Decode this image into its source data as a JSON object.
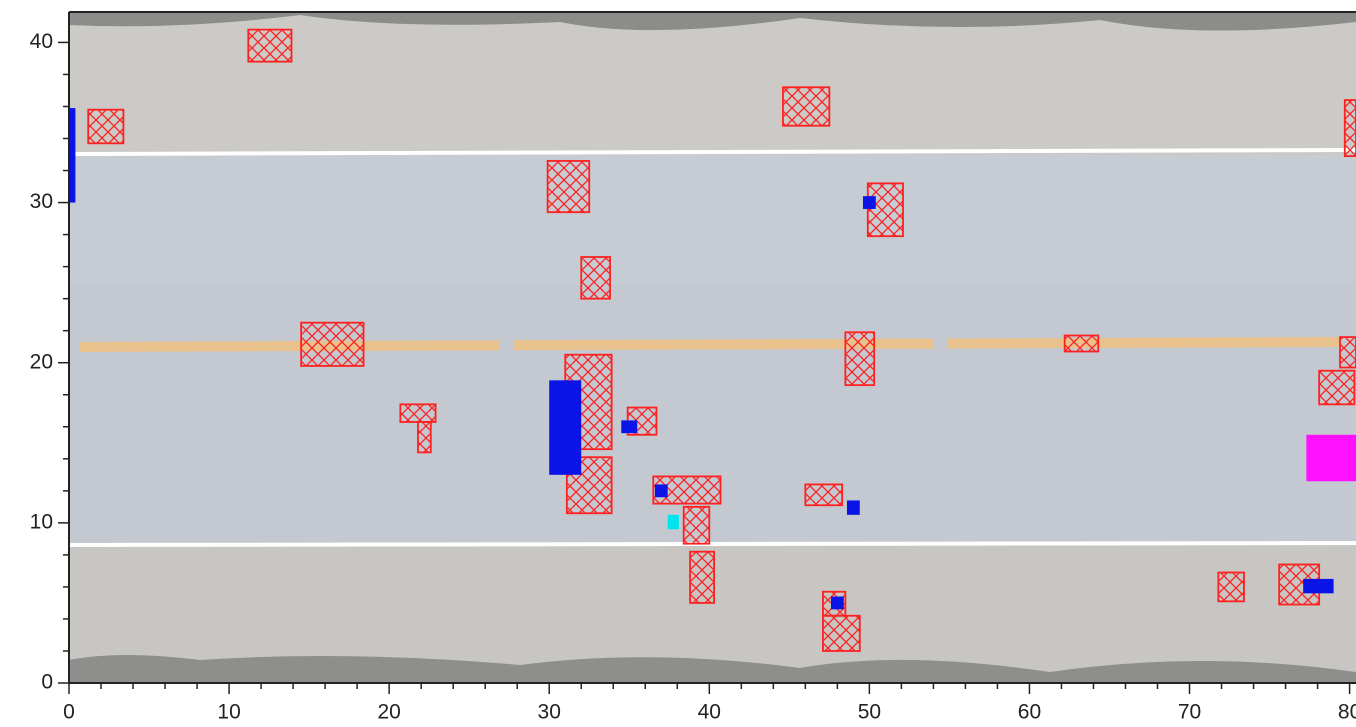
{
  "chart_data": {
    "type": "region",
    "xlim": [
      0,
      80.4
    ],
    "ylim": [
      0,
      41.9
    ],
    "xticks": [
      0,
      10,
      20,
      30,
      40,
      50,
      60,
      70,
      80
    ],
    "yticks": [
      0,
      10,
      20,
      30,
      40
    ],
    "xminorticks": [
      2,
      4,
      6,
      8,
      12,
      14,
      16,
      18,
      22,
      24,
      26,
      28,
      32,
      34,
      36,
      38,
      42,
      44,
      46,
      48,
      52,
      54,
      56,
      58,
      62,
      64,
      66,
      68,
      72,
      74,
      76,
      78
    ],
    "yminorticks": [
      2,
      4,
      6,
      8,
      12,
      14,
      16,
      18,
      22,
      24,
      26,
      28,
      32,
      34,
      36,
      38
    ],
    "series": [
      {
        "color": "#ff2020",
        "hatch": true,
        "regions": [
          {
            "x0": 11.2,
            "x1": 13.9,
            "y0": 38.8,
            "y1": 40.8
          },
          {
            "x0": 1.2,
            "x1": 3.4,
            "y0": 33.7,
            "y1": 35.8
          },
          {
            "x0": 44.6,
            "x1": 47.5,
            "y0": 34.8,
            "y1": 37.2
          },
          {
            "x0": 79.7,
            "x1": 80.4,
            "y0": 32.9,
            "y1": 36.4
          },
          {
            "x0": 29.9,
            "x1": 32.5,
            "y0": 29.4,
            "y1": 32.6
          },
          {
            "x0": 49.9,
            "x1": 52.1,
            "y0": 27.9,
            "y1": 31.2
          },
          {
            "x0": 32.0,
            "x1": 33.8,
            "y0": 24.0,
            "y1": 26.6
          },
          {
            "x0": 14.5,
            "x1": 18.4,
            "y0": 19.8,
            "y1": 22.5
          },
          {
            "x0": 48.5,
            "x1": 50.3,
            "y0": 18.6,
            "y1": 21.9
          },
          {
            "x0": 62.2,
            "x1": 64.3,
            "y0": 20.7,
            "y1": 21.7
          },
          {
            "x0": 79.4,
            "x1": 80.4,
            "y0": 19.7,
            "y1": 21.6
          },
          {
            "x0": 78.1,
            "x1": 80.3,
            "y0": 17.4,
            "y1": 19.5
          },
          {
            "x0": 31.0,
            "x1": 33.9,
            "y0": 14.6,
            "y1": 20.5
          },
          {
            "x0": 20.7,
            "x1": 22.9,
            "y0": 16.3,
            "y1": 17.4
          },
          {
            "x0": 21.8,
            "x1": 22.6,
            "y0": 14.4,
            "y1": 16.3
          },
          {
            "x0": 34.9,
            "x1": 36.7,
            "y0": 15.5,
            "y1": 17.2
          },
          {
            "x0": 31.1,
            "x1": 33.9,
            "y0": 10.6,
            "y1": 14.1
          },
          {
            "x0": 36.5,
            "x1": 40.7,
            "y0": 11.2,
            "y1": 12.9
          },
          {
            "x0": 46.0,
            "x1": 48.3,
            "y0": 11.1,
            "y1": 12.4
          },
          {
            "x0": 38.4,
            "x1": 40.0,
            "y0": 8.7,
            "y1": 11.0
          },
          {
            "x0": 38.8,
            "x1": 40.3,
            "y0": 5.0,
            "y1": 8.2
          },
          {
            "x0": 71.8,
            "x1": 73.4,
            "y0": 5.1,
            "y1": 6.9
          },
          {
            "x0": 75.6,
            "x1": 78.1,
            "y0": 4.9,
            "y1": 7.4
          },
          {
            "x0": 47.1,
            "x1": 48.5,
            "y0": 4.2,
            "y1": 5.7
          },
          {
            "x0": 47.1,
            "x1": 49.4,
            "y0": 2.0,
            "y1": 4.2
          }
        ]
      },
      {
        "color": "#0a14e6",
        "hatch": false,
        "regions": [
          {
            "x0": 0.0,
            "x1": 0.4,
            "y0": 30.0,
            "y1": 35.9
          },
          {
            "x0": 30.0,
            "x1": 32.0,
            "y0": 13.0,
            "y1": 18.9
          },
          {
            "x0": 49.6,
            "x1": 50.4,
            "y0": 29.6,
            "y1": 30.4
          },
          {
            "x0": 34.5,
            "x1": 35.5,
            "y0": 15.6,
            "y1": 16.4
          },
          {
            "x0": 36.6,
            "x1": 37.4,
            "y0": 11.6,
            "y1": 12.4
          },
          {
            "x0": 48.6,
            "x1": 49.4,
            "y0": 10.5,
            "y1": 11.4
          },
          {
            "x0": 47.6,
            "x1": 48.4,
            "y0": 4.6,
            "y1": 5.4
          },
          {
            "x0": 77.1,
            "x1": 79.0,
            "y0": 5.6,
            "y1": 6.5
          }
        ]
      },
      {
        "color": "#00e5ee",
        "hatch": false,
        "regions": [
          {
            "x0": 37.4,
            "x1": 38.1,
            "y0": 9.6,
            "y1": 10.5
          }
        ]
      },
      {
        "color": "#ff10ff",
        "hatch": false,
        "regions": [
          {
            "x0": 77.3,
            "x1": 80.4,
            "y0": 12.6,
            "y1": 15.5
          }
        ]
      }
    ]
  }
}
